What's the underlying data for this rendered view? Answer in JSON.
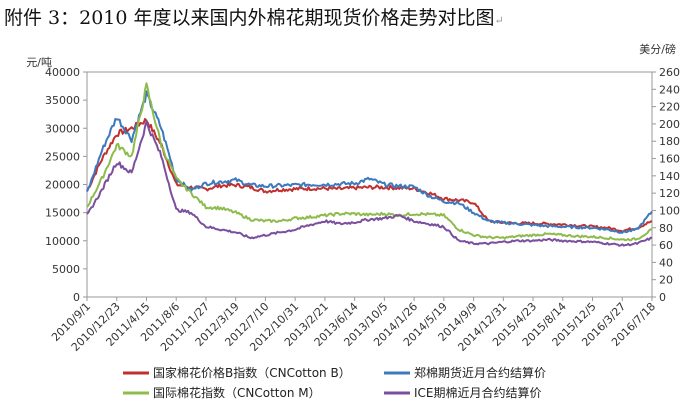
{
  "page_title": "附件 3：2010 年度以来国内外棉花期现货价格走势对比图",
  "title_mark": "↵",
  "chart_data": {
    "type": "line",
    "title": "附件 3：2010 年度以来国内外棉花期现货价格走势对比图",
    "ylabel": "元/吨",
    "y2label": "美分/磅",
    "ylim": [
      0,
      40000
    ],
    "y2lim": [
      0,
      260
    ],
    "y_ticks": [
      "0",
      "5000",
      "10000",
      "15000",
      "20000",
      "25000",
      "30000",
      "35000",
      "40000"
    ],
    "y2_ticks": [
      "0",
      "20",
      "40",
      "60",
      "80",
      "100",
      "120",
      "140",
      "160",
      "180",
      "200",
      "220",
      "240",
      "260"
    ],
    "x_ticks": [
      "2010/9/1",
      "2010/12/23",
      "2011/4/15",
      "2011/8/6",
      "2011/11/27",
      "2012/3/19",
      "2012/7/10",
      "2012/10/31",
      "2013/2/21",
      "2013/6/14",
      "2013/10/5",
      "2014/1/26",
      "2014/5/19",
      "2014/9/9",
      "2014/12/31",
      "2015/4/23",
      "2015/8/14",
      "2015/12/5",
      "2016/3/27",
      "2016/7/18"
    ],
    "grid": false,
    "legend_position": "bottom",
    "series": [
      {
        "name": "国家棉花价格B指数（CNCotton B）",
        "axis": "left",
        "color": "#c0302f",
        "values": [
          18800,
          24500,
          29000,
          30000,
          31500,
          27000,
          20000,
          19500,
          19200,
          19800,
          19900,
          19500,
          18800,
          19100,
          19200,
          19300,
          19300,
          19200,
          19400,
          19500,
          19500,
          19400,
          19300,
          18500,
          17500,
          17200,
          16800,
          13500,
          13200,
          13100,
          13100,
          13000,
          12900,
          12700,
          12500,
          12300,
          11800,
          12300,
          13500
        ]
      },
      {
        "name": "郑棉期货近月合约结算价",
        "axis": "left",
        "color": "#3c79bf",
        "values": [
          18500,
          26000,
          32000,
          28000,
          36000,
          30000,
          21000,
          19000,
          20200,
          20500,
          20800,
          19900,
          19700,
          19800,
          19900,
          20000,
          20000,
          20100,
          20200,
          21000,
          20000,
          19700,
          19600,
          18000,
          17000,
          16700,
          15000,
          13500,
          13200,
          13000,
          12800,
          12600,
          12500,
          12400,
          12300,
          12000,
          11500,
          12000,
          15200
        ]
      },
      {
        "name": "国际棉花指数（CNCotton M）",
        "axis": "left",
        "color": "#8dbc4b",
        "values": [
          16000,
          21000,
          27000,
          25000,
          37500,
          27000,
          21000,
          18500,
          16000,
          15800,
          15000,
          13800,
          13500,
          13500,
          14000,
          14200,
          14500,
          14800,
          14800,
          14600,
          14800,
          14500,
          14800,
          14700,
          14500,
          12000,
          11000,
          10600,
          10500,
          10800,
          11000,
          11200,
          11000,
          10800,
          10700,
          10500,
          10200,
          10300,
          12000
        ]
      },
      {
        "name": "ICE期棉近月合约结算价",
        "axis": "left",
        "color": "#7b4f9e",
        "values": [
          14500,
          19000,
          24000,
          22000,
          31000,
          25000,
          15500,
          15000,
          12500,
          12000,
          11500,
          10500,
          11000,
          11500,
          12000,
          12800,
          13500,
          13000,
          13300,
          13800,
          14000,
          14500,
          13500,
          13000,
          12500,
          10000,
          9500,
          9500,
          9800,
          10000,
          10000,
          10200,
          10000,
          9900,
          9800,
          9500,
          9200,
          9500,
          10500
        ]
      }
    ]
  }
}
